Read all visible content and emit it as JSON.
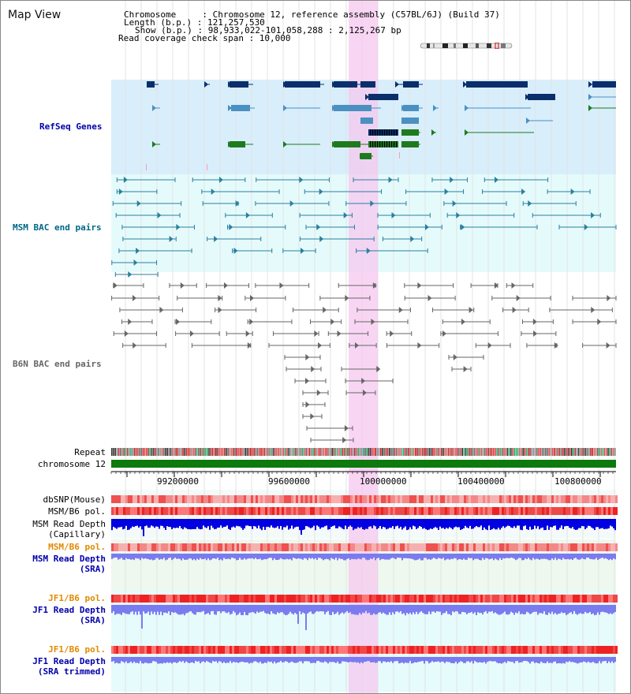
{
  "title": "Map View",
  "header": {
    "chromosome": "Chromosome     : Chromosome 12, reference assembly (C57BL/6J) (Build 37)",
    "length": "Length (b.p.) : 121,257,530",
    "show": "Show (b.p.) : 98,933,022-101,058,288 : 2,125,267 bp",
    "span": "Read coverage check span : 10,000"
  },
  "tracks": {
    "refseq": "RefSeq Genes",
    "msm_bac": "MSM BAC end pairs",
    "b6n_bac": "B6N BAC end pairs",
    "repeat": "Repeat",
    "chromosome": "chromosome 12",
    "dbsnp": "dbSNP(Mouse)",
    "msm_b6_pol_1": "MSM/B6 pol.",
    "msm_depth_cap_1": "MSM Read Depth",
    "msm_depth_cap_2": "(Capillary)",
    "msm_b6_pol_2": "MSM/B6 pol.",
    "msm_depth_sra_1": "MSM Read Depth",
    "msm_depth_sra_2": "(SRA)",
    "jf1_b6_pol_1": "JF1/B6 pol.",
    "jf1_depth_sra_1": "JF1 Read Depth",
    "jf1_depth_sra_2": "(SRA)",
    "jf1_b6_pol_2": "JF1/B6 pol.",
    "jf1_depth_trim_1": "JF1 Read Depth",
    "jf1_depth_trim_2": "(SRA trimmed)"
  },
  "axis": {
    "ticks": [
      "99200000",
      "99600000",
      "100000000",
      "100400000",
      "100800000"
    ]
  },
  "colors": {
    "highlight": "#f6c8ef",
    "refseq_bg": "#d8eefb",
    "msm_bg": "#e5fbfb",
    "gene_dark": "#0a2f6b",
    "gene_mid": "#4a90c0",
    "gene_green": "#1e7a1e",
    "msm_pair": "#2a7f9f",
    "b6n_pair": "#666666",
    "chromosome_bar": "#0c7a0c",
    "depth_blue": "#0000e0",
    "depth_light": "#7b7bf0",
    "label_blue": "#0000aa",
    "label_teal": "#006688",
    "label_orange": "#e08a00"
  }
}
